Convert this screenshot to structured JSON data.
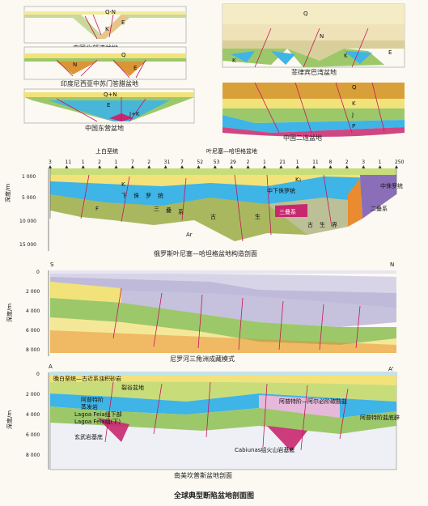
{
  "sections": {
    "bohai": {
      "caption": "中国北部湾盆地",
      "layers": [
        "Q·N",
        "E",
        "K"
      ]
    },
    "cinoba": {
      "caption": "印度尼西亚中苏门答腊盆地",
      "layers": [
        "Q",
        "N",
        "E"
      ]
    },
    "dongying": {
      "caption": "中国东营盆地",
      "layers": [
        "Q+N",
        "E",
        "J+K"
      ]
    },
    "philippine": {
      "caption": "菲律宾巴湾盆地",
      "layers": [
        "Q",
        "N",
        "K",
        "K",
        "E"
      ]
    },
    "erlian": {
      "caption": "中国二连盆地",
      "layers": [
        "Q",
        "K",
        "J",
        "P"
      ]
    },
    "russia": {
      "caption": "俄罗斯叶尼塞—哈坦格盆地构造剖面",
      "top_labels": [
        "上白垩统",
        "叶尼塞—哈坦格盆地"
      ],
      "well_numbers": [
        "3",
        "11",
        "1",
        "2",
        "1",
        "7",
        "2",
        "31",
        "7",
        "52",
        "53",
        "29",
        "2",
        "1",
        "21",
        "1",
        "11",
        "8",
        "2",
        "3",
        "1",
        "250"
      ],
      "depth_ticks": [
        "1 000",
        "5 000",
        "10 000",
        "15 000"
      ],
      "depth_label": "深度/m",
      "side_labels": [
        "中侏罗统",
        "二叠系"
      ],
      "inner_labels": [
        "K",
        "下",
        "侏",
        "罗",
        "统",
        "F",
        "三",
        "叠",
        "系",
        "古",
        "生",
        "中下侏罗统",
        "K₁",
        "三叠系",
        "古",
        "生",
        "界",
        "Ar"
      ]
    },
    "niger": {
      "caption": "尼罗河三角洲成藏模式",
      "ends": [
        "S",
        "N"
      ],
      "depth_ticks": [
        "0",
        "2 000",
        "4 000",
        "6 000",
        "8 000"
      ],
      "depth_label": "深度/m"
    },
    "brazil": {
      "caption": "南美坎普斯盆地剖面",
      "ends": [
        "A",
        "A'"
      ],
      "depth_ticks": [
        "0",
        "2 000",
        "4 000",
        "6 000",
        "8 000"
      ],
      "depth_label": "深度/m",
      "labels": [
        "晚白垩统—古近系浊积砂岩",
        "阿普特阶",
        "蒸发岩",
        "裂谷盆地",
        "Lagoa Feia组下部",
        "Lagoa Feia组(下)",
        "玄武岩基底",
        "阿普特阶—阿尔必阶碳酸盐",
        "Cabiunas组火山岩基底",
        "阿普特阶盐底辟"
      ]
    }
  },
  "main_title": "全球典型断陷盆地剖面图",
  "colors": {
    "yellow": "#f2e27a",
    "green": "#9cc86a",
    "blue": "#3fb4e6",
    "purple": "#8a6fb8",
    "magenta": "#c8276f",
    "orange": "#e98b2e",
    "pink": "#e6b8d9",
    "gray": "#c9c4bd"
  }
}
